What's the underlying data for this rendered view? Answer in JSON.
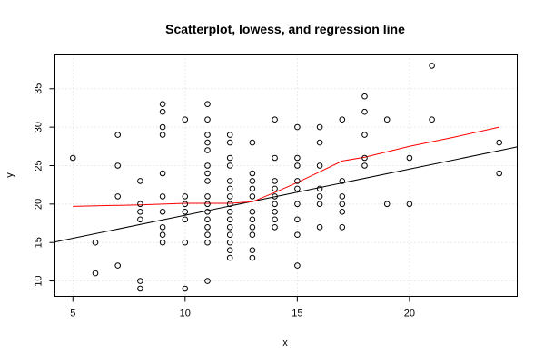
{
  "chart_data": {
    "type": "scatter",
    "title": "Scatterplot, lowess, and regression line",
    "xlabel": "x",
    "ylabel": "y",
    "xlim": [
      4.2,
      24.8
    ],
    "ylim": [
      8,
      39.4
    ],
    "xticks": [
      5,
      10,
      15,
      20
    ],
    "yticks": [
      10,
      15,
      20,
      25,
      30,
      35
    ],
    "grid": true,
    "points": [
      [
        5,
        26
      ],
      [
        6,
        11
      ],
      [
        6,
        15
      ],
      [
        7,
        12
      ],
      [
        7,
        21
      ],
      [
        7,
        25
      ],
      [
        7,
        29
      ],
      [
        8,
        9
      ],
      [
        8,
        10
      ],
      [
        8,
        18
      ],
      [
        8,
        19
      ],
      [
        8,
        20
      ],
      [
        8,
        23
      ],
      [
        9,
        15
      ],
      [
        9,
        16
      ],
      [
        9,
        17
      ],
      [
        9,
        19
      ],
      [
        9,
        21
      ],
      [
        9,
        24
      ],
      [
        9,
        29
      ],
      [
        9,
        30
      ],
      [
        9,
        32
      ],
      [
        9,
        33
      ],
      [
        10,
        9
      ],
      [
        10,
        15
      ],
      [
        10,
        18
      ],
      [
        10,
        19
      ],
      [
        10,
        20
      ],
      [
        10,
        21
      ],
      [
        10,
        31
      ],
      [
        11,
        10
      ],
      [
        11,
        15
      ],
      [
        11,
        16
      ],
      [
        11,
        17
      ],
      [
        11,
        18
      ],
      [
        11,
        19
      ],
      [
        11,
        20
      ],
      [
        11,
        21
      ],
      [
        11,
        23
      ],
      [
        11,
        24
      ],
      [
        11,
        25
      ],
      [
        11,
        27
      ],
      [
        11,
        28
      ],
      [
        11,
        29
      ],
      [
        11,
        31
      ],
      [
        11,
        33
      ],
      [
        12,
        13
      ],
      [
        12,
        14
      ],
      [
        12,
        15
      ],
      [
        12,
        16
      ],
      [
        12,
        17
      ],
      [
        12,
        18
      ],
      [
        12,
        19
      ],
      [
        12,
        20
      ],
      [
        12,
        21
      ],
      [
        12,
        22
      ],
      [
        12,
        23
      ],
      [
        12,
        25
      ],
      [
        12,
        26
      ],
      [
        12,
        28
      ],
      [
        12,
        29
      ],
      [
        13,
        13
      ],
      [
        13,
        14
      ],
      [
        13,
        16
      ],
      [
        13,
        17
      ],
      [
        13,
        18
      ],
      [
        13,
        19
      ],
      [
        13,
        21
      ],
      [
        13,
        22
      ],
      [
        13,
        23
      ],
      [
        13,
        24
      ],
      [
        13,
        28
      ],
      [
        14,
        17
      ],
      [
        14,
        18
      ],
      [
        14,
        19
      ],
      [
        14,
        20
      ],
      [
        14,
        21
      ],
      [
        14,
        22
      ],
      [
        14,
        23
      ],
      [
        14,
        26
      ],
      [
        14,
        31
      ],
      [
        15,
        12
      ],
      [
        15,
        16
      ],
      [
        15,
        18
      ],
      [
        15,
        20
      ],
      [
        15,
        22
      ],
      [
        15,
        23
      ],
      [
        15,
        25
      ],
      [
        15,
        26
      ],
      [
        15,
        30
      ],
      [
        16,
        17
      ],
      [
        16,
        20
      ],
      [
        16,
        21
      ],
      [
        16,
        22
      ],
      [
        16,
        25
      ],
      [
        16,
        28
      ],
      [
        16,
        30
      ],
      [
        17,
        17
      ],
      [
        17,
        19
      ],
      [
        17,
        20
      ],
      [
        17,
        21
      ],
      [
        17,
        23
      ],
      [
        17,
        31
      ],
      [
        18,
        25
      ],
      [
        18,
        26
      ],
      [
        18,
        29
      ],
      [
        18,
        32
      ],
      [
        18,
        34
      ],
      [
        19,
        20
      ],
      [
        19,
        31
      ],
      [
        20,
        20
      ],
      [
        20,
        26
      ],
      [
        21,
        31
      ],
      [
        21,
        38
      ],
      [
        24,
        24
      ],
      [
        24,
        28
      ]
    ],
    "lowess": [
      [
        5,
        19.7
      ],
      [
        8,
        19.9
      ],
      [
        10,
        20.1
      ],
      [
        12,
        20.1
      ],
      [
        13,
        20.3
      ],
      [
        14,
        21.5
      ],
      [
        15,
        22.8
      ],
      [
        16,
        24.2
      ],
      [
        17,
        25.6
      ],
      [
        18,
        26.1
      ],
      [
        20,
        27.5
      ],
      [
        22,
        28.7
      ],
      [
        24,
        30
      ]
    ],
    "regression": {
      "intercept": 12.55,
      "slope": 0.6
    },
    "colors": {
      "points": "#000000",
      "lowess": "#ff0000",
      "regression": "#000000",
      "grid": "#d3d3d3"
    }
  }
}
